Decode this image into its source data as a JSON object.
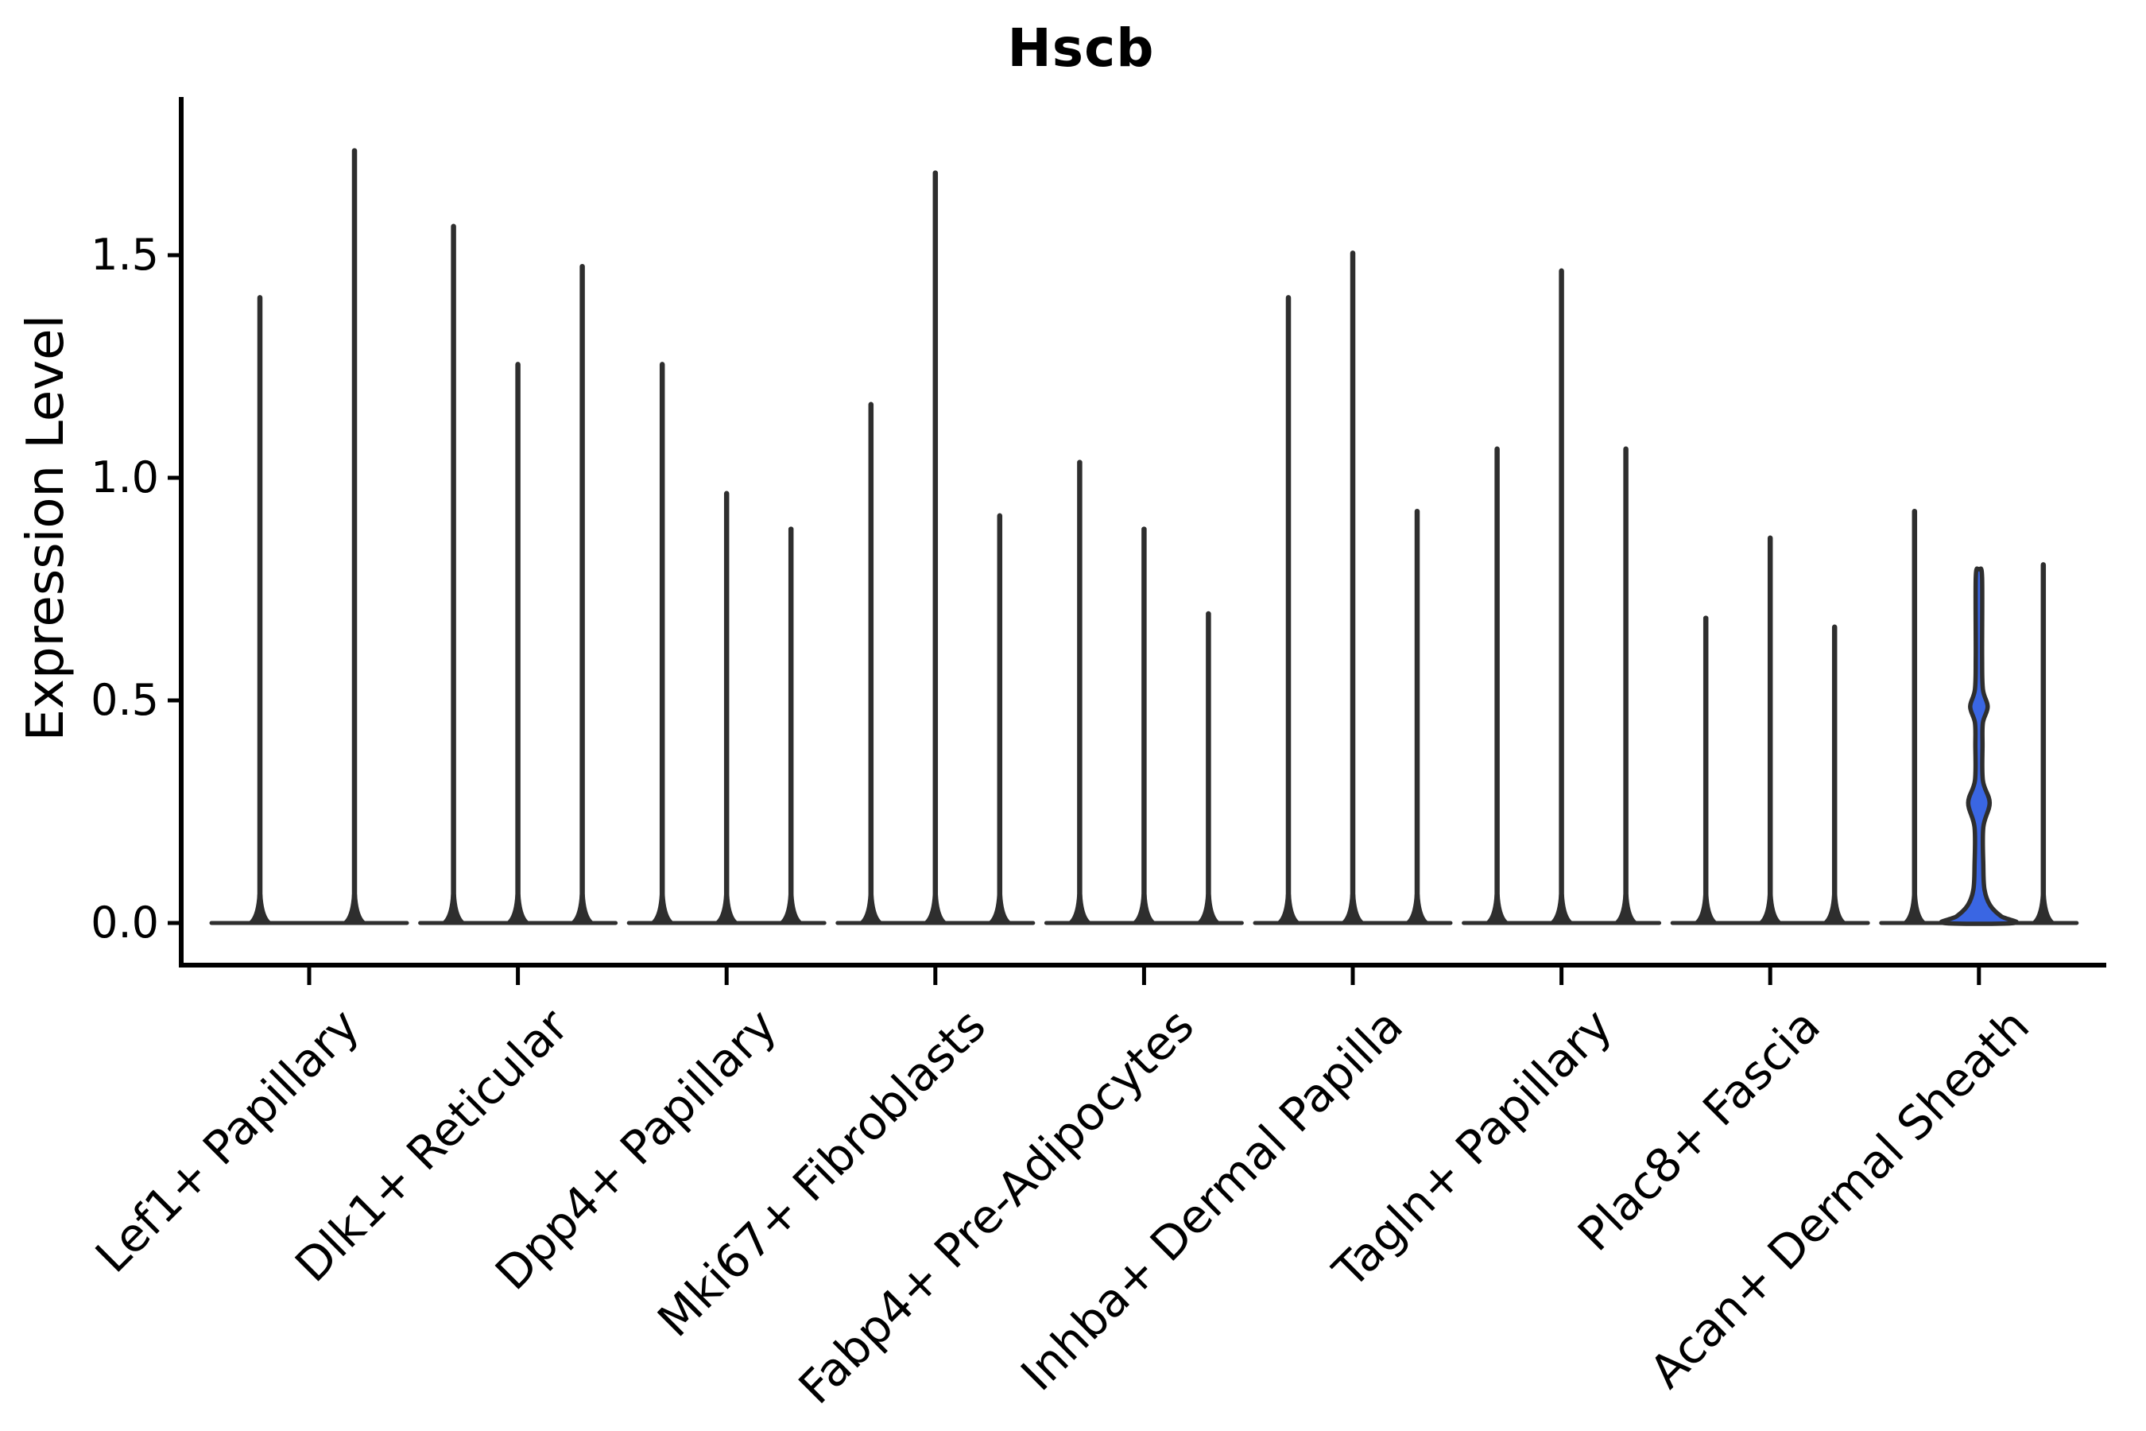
{
  "title": "Hscb",
  "y_axis": {
    "label": "Expression Level",
    "tick_labels": [
      "0.0",
      "0.5",
      "1.0",
      "1.5"
    ],
    "tick_values": [
      0.0,
      0.5,
      1.0,
      1.5
    ]
  },
  "colors": {
    "spike": "#2e2e2e",
    "axis": "#000000",
    "highlight_fill": "#3a66e3",
    "background": "#ffffff"
  },
  "chart_data": {
    "type": "violin",
    "title": "Hscb",
    "ylabel": "Expression Level",
    "ylim": [
      -0.09,
      1.86
    ],
    "yticks": [
      0.0,
      0.5,
      1.0,
      1.5
    ],
    "grid": false,
    "legend": "none",
    "x_tick_rotation": 45,
    "categories": [
      "Lef1+ Papillary",
      "Dlk1+ Reticular",
      "Dpp4+ Papillary",
      "Mki67+ Fibroblasts",
      "Fabp4+ Pre-Adipocytes",
      "Inhba+ Dermal Papilla",
      "Tagln+ Papillary",
      "Plac8+ Fascia",
      "Acan+ Dermal Sheath"
    ],
    "groups": [
      {
        "label": "Lef1+ Papillary",
        "violins": [
          {
            "max": 1.41
          },
          {
            "max": 1.74
          }
        ]
      },
      {
        "label": "Dlk1+ Reticular",
        "violins": [
          {
            "max": 1.57
          },
          {
            "max": 1.26
          },
          {
            "max": 1.48
          }
        ]
      },
      {
        "label": "Dpp4+ Papillary",
        "violins": [
          {
            "max": 1.26
          },
          {
            "max": 0.97
          },
          {
            "max": 0.89
          }
        ]
      },
      {
        "label": "Mki67+ Fibroblasts",
        "violins": [
          {
            "max": 1.17
          },
          {
            "max": 1.69
          },
          {
            "max": 0.92
          }
        ]
      },
      {
        "label": "Fabp4+ Pre-Adipocytes",
        "violins": [
          {
            "max": 1.04
          },
          {
            "max": 0.89
          },
          {
            "max": 0.7
          }
        ]
      },
      {
        "label": "Inhba+ Dermal Papilla",
        "violins": [
          {
            "max": 1.41
          },
          {
            "max": 1.51
          },
          {
            "max": 0.93
          }
        ]
      },
      {
        "label": "Tagln+ Papillary",
        "violins": [
          {
            "max": 1.07
          },
          {
            "max": 1.47
          },
          {
            "max": 1.07
          }
        ]
      },
      {
        "label": "Plac8+ Fascia",
        "violins": [
          {
            "max": 0.69
          },
          {
            "max": 0.87
          },
          {
            "max": 0.67
          }
        ]
      },
      {
        "label": "Acan+ Dermal Sheath",
        "violins": [
          {
            "max": 0.93
          },
          {
            "max": 0.795,
            "highlight": true,
            "profile": [
              [
                0.795,
                1
              ],
              [
                0.775,
                4
              ],
              [
                0.6,
                4
              ],
              [
                0.525,
                5
              ],
              [
                0.486,
                11
              ],
              [
                0.45,
                5
              ],
              [
                0.4,
                4.5
              ],
              [
                0.32,
                5
              ],
              [
                0.27,
                13.5
              ],
              [
                0.215,
                5.5
              ],
              [
                0.13,
                5.5
              ],
              [
                0.075,
                7
              ],
              [
                0.04,
                14
              ],
              [
                0.015,
                28
              ],
              [
                0.0,
                44
              ]
            ]
          },
          {
            "max": 0.81
          }
        ]
      }
    ]
  }
}
